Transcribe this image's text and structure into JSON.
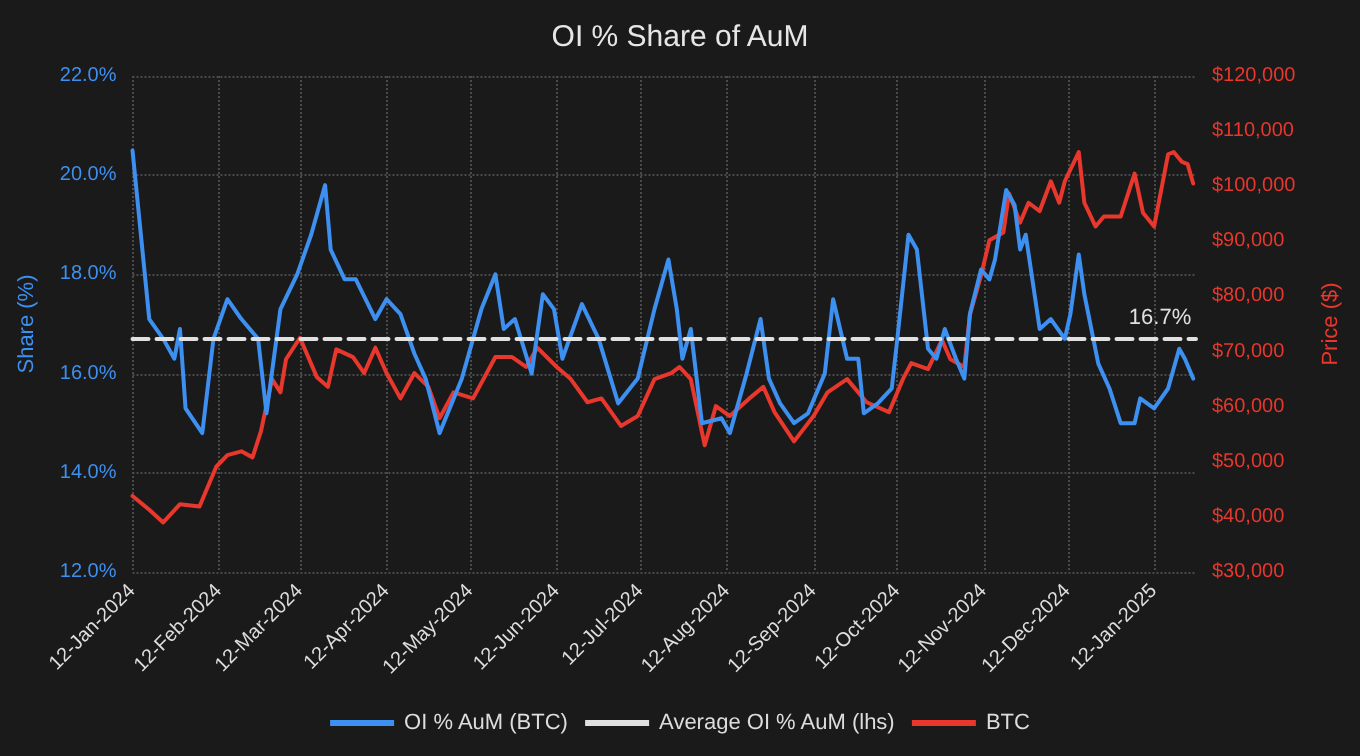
{
  "chart_data": {
    "type": "line",
    "title": "OI % Share of AuM",
    "ylabel": "Share (%)",
    "y2label": "Price ($)",
    "xlim": [
      "2024-01-12",
      "2025-01-27"
    ],
    "xticks": [
      {
        "value": "2024-01-12",
        "label": "12-Jan-2024"
      },
      {
        "value": "2024-02-12",
        "label": "12-Feb-2024"
      },
      {
        "value": "2024-03-12",
        "label": "12-Mar-2024"
      },
      {
        "value": "2024-04-12",
        "label": "12-Apr-2024"
      },
      {
        "value": "2024-05-12",
        "label": "12-May-2024"
      },
      {
        "value": "2024-06-12",
        "label": "12-Jun-2024"
      },
      {
        "value": "2024-07-12",
        "label": "12-Jul-2024"
      },
      {
        "value": "2024-08-12",
        "label": "12-Aug-2024"
      },
      {
        "value": "2024-09-12",
        "label": "12-Sep-2024"
      },
      {
        "value": "2024-10-12",
        "label": "12-Oct-2024"
      },
      {
        "value": "2024-11-12",
        "label": "12-Nov-2024"
      },
      {
        "value": "2024-12-12",
        "label": "12-Dec-2024"
      },
      {
        "value": "2025-01-12",
        "label": "12-Jan-2025"
      }
    ],
    "ylim": [
      12,
      22
    ],
    "yticks": [
      {
        "value": 12,
        "label": "12.0%"
      },
      {
        "value": 14,
        "label": "14.0%"
      },
      {
        "value": 16,
        "label": "16.0%"
      },
      {
        "value": 18,
        "label": "18.0%"
      },
      {
        "value": 20,
        "label": "20.0%"
      },
      {
        "value": 22,
        "label": "22.0%"
      }
    ],
    "y2lim": [
      30000,
      120000
    ],
    "y2ticks": [
      {
        "value": 30000,
        "label": "$30,000"
      },
      {
        "value": 40000,
        "label": "$40,000"
      },
      {
        "value": 50000,
        "label": "$50,000"
      },
      {
        "value": 60000,
        "label": "$60,000"
      },
      {
        "value": 70000,
        "label": "$70,000"
      },
      {
        "value": 80000,
        "label": "$80,000"
      },
      {
        "value": 90000,
        "label": "$90,000"
      },
      {
        "value": 100000,
        "label": "$100,000"
      },
      {
        "value": 110000,
        "label": "$110,000"
      },
      {
        "value": 120000,
        "label": "$120,000"
      }
    ],
    "grid": true,
    "legend": "bottom",
    "marker": "none",
    "series": [
      {
        "name": "OI % AuM (BTC)",
        "color": "#3d8ff0",
        "line_style": "solid",
        "x": [
          "2024-01-12",
          "2024-01-18",
          "2024-01-23",
          "2024-01-27",
          "2024-01-29",
          "2024-01-31",
          "2024-02-06",
          "2024-02-10",
          "2024-02-15",
          "2024-02-20",
          "2024-02-26",
          "2024-02-29",
          "2024-03-05",
          "2024-03-11",
          "2024-03-16",
          "2024-03-21",
          "2024-03-23",
          "2024-03-28",
          "2024-04-01",
          "2024-04-08",
          "2024-04-12",
          "2024-04-17",
          "2024-04-22",
          "2024-04-26",
          "2024-05-01",
          "2024-05-09",
          "2024-05-16",
          "2024-05-21",
          "2024-05-24",
          "2024-05-28",
          "2024-06-03",
          "2024-06-07",
          "2024-06-11",
          "2024-06-14",
          "2024-06-21",
          "2024-06-27",
          "2024-07-04",
          "2024-07-11",
          "2024-07-17",
          "2024-07-22",
          "2024-07-25",
          "2024-07-27",
          "2024-07-30",
          "2024-08-03",
          "2024-08-10",
          "2024-08-13",
          "2024-08-19",
          "2024-08-24",
          "2024-08-27",
          "2024-08-31",
          "2024-09-05",
          "2024-09-10",
          "2024-09-16",
          "2024-09-19",
          "2024-09-24",
          "2024-09-28",
          "2024-09-30",
          "2024-10-05",
          "2024-10-10",
          "2024-10-12",
          "2024-10-16",
          "2024-10-19",
          "2024-10-23",
          "2024-10-26",
          "2024-10-29",
          "2024-11-02",
          "2024-11-05",
          "2024-11-07",
          "2024-11-11",
          "2024-11-14",
          "2024-11-16",
          "2024-11-20",
          "2024-11-23",
          "2024-11-25",
          "2024-11-27",
          "2024-12-02",
          "2024-12-06",
          "2024-12-11",
          "2024-12-13",
          "2024-12-16",
          "2024-12-18",
          "2024-12-23",
          "2024-12-27",
          "2024-12-31",
          "2025-01-05",
          "2025-01-07",
          "2025-01-12",
          "2025-01-17",
          "2025-01-21",
          "2025-01-23",
          "2025-01-26"
        ],
        "values": [
          20.5,
          17.1,
          16.7,
          16.3,
          16.9,
          15.3,
          14.8,
          16.7,
          17.5,
          17.1,
          16.7,
          15.2,
          17.3,
          18.0,
          18.8,
          19.8,
          18.5,
          17.9,
          17.9,
          17.1,
          17.5,
          17.2,
          16.4,
          15.9,
          14.8,
          15.9,
          17.3,
          18.0,
          16.9,
          17.1,
          16.0,
          17.6,
          17.3,
          16.3,
          17.4,
          16.7,
          15.4,
          15.9,
          17.3,
          18.3,
          17.3,
          16.3,
          16.9,
          15.0,
          15.1,
          14.8,
          16.0,
          17.1,
          15.9,
          15.4,
          15.0,
          15.2,
          16.0,
          17.5,
          16.3,
          16.3,
          15.2,
          15.4,
          15.7,
          16.7,
          18.8,
          18.5,
          16.5,
          16.3,
          16.9,
          16.3,
          15.9,
          17.2,
          18.1,
          17.9,
          18.3,
          19.7,
          19.4,
          18.5,
          18.8,
          16.9,
          17.1,
          16.7,
          17.2,
          18.4,
          17.6,
          16.2,
          15.7,
          15.0,
          15.0,
          15.5,
          15.3,
          15.7,
          16.5,
          16.3,
          15.9
        ]
      },
      {
        "name": "Average OI % AuM (lhs)",
        "color": "#e0e0e0",
        "line_style": "dashed",
        "x": [
          "2024-01-12",
          "2025-01-27"
        ],
        "values": [
          16.7,
          16.7
        ],
        "value_labels": [
          null,
          "16.7%"
        ]
      },
      {
        "name": "BTC",
        "color": "#e8372c",
        "line_style": "solid",
        "axis": "y2",
        "x": [
          "2024-01-12",
          "2024-01-18",
          "2024-01-23",
          "2024-01-29",
          "2024-02-05",
          "2024-02-11",
          "2024-02-15",
          "2024-02-20",
          "2024-02-24",
          "2024-02-27",
          "2024-03-02",
          "2024-03-05",
          "2024-03-07",
          "2024-03-12",
          "2024-03-18",
          "2024-03-22",
          "2024-03-25",
          "2024-03-31",
          "2024-04-04",
          "2024-04-08",
          "2024-04-12",
          "2024-04-17",
          "2024-04-22",
          "2024-04-27",
          "2024-05-01",
          "2024-05-06",
          "2024-05-13",
          "2024-05-21",
          "2024-05-27",
          "2024-06-01",
          "2024-06-05",
          "2024-06-12",
          "2024-06-17",
          "2024-06-23",
          "2024-06-28",
          "2024-07-05",
          "2024-07-11",
          "2024-07-17",
          "2024-07-23",
          "2024-07-26",
          "2024-07-30",
          "2024-08-04",
          "2024-08-08",
          "2024-08-13",
          "2024-08-20",
          "2024-08-25",
          "2024-08-29",
          "2024-09-05",
          "2024-09-12",
          "2024-09-17",
          "2024-09-24",
          "2024-10-01",
          "2024-10-09",
          "2024-10-14",
          "2024-10-17",
          "2024-10-23",
          "2024-10-28",
          "2024-10-31",
          "2024-11-05",
          "2024-11-07",
          "2024-11-11",
          "2024-11-14",
          "2024-11-19",
          "2024-11-21",
          "2024-11-25",
          "2024-11-28",
          "2024-12-02",
          "2024-12-06",
          "2024-12-09",
          "2024-12-11",
          "2024-12-16",
          "2024-12-18",
          "2024-12-22",
          "2024-12-25",
          "2024-12-31",
          "2025-01-05",
          "2025-01-08",
          "2025-01-12",
          "2025-01-15",
          "2025-01-17",
          "2025-01-19",
          "2025-01-22",
          "2025-01-24",
          "2025-01-26"
        ],
        "values": [
          43800,
          41300,
          39000,
          42300,
          41900,
          49100,
          51200,
          51900,
          50800,
          55500,
          65000,
          62600,
          68600,
          72500,
          65400,
          63600,
          70400,
          69000,
          66100,
          70700,
          66100,
          61500,
          66100,
          63600,
          57900,
          62600,
          61500,
          69000,
          69000,
          67200,
          70700,
          67200,
          65000,
          60800,
          61500,
          56500,
          58300,
          65000,
          66100,
          67200,
          65000,
          53000,
          60100,
          58300,
          61500,
          63600,
          59000,
          53700,
          58300,
          62600,
          65000,
          60800,
          59000,
          65000,
          67900,
          66800,
          72100,
          68600,
          67200,
          76700,
          83800,
          90200,
          91600,
          98700,
          93400,
          97000,
          95500,
          100900,
          97000,
          100900,
          106200,
          97000,
          92700,
          94500,
          94500,
          102300,
          95200,
          92700,
          100500,
          105800,
          106200,
          104400,
          104000,
          100500
        ]
      }
    ]
  }
}
